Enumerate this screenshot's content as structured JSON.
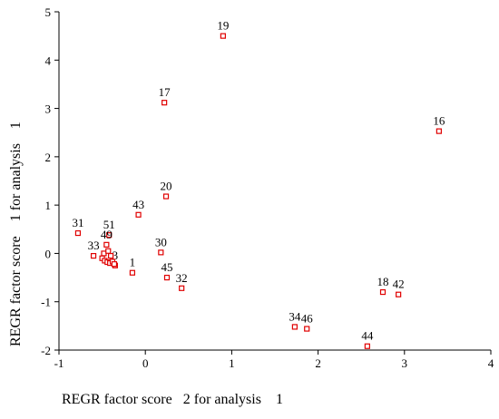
{
  "chart_data": {
    "type": "scatter",
    "xlabel": "REGR factor score   2 for analysis    1",
    "ylabel": "REGR factor score    1 for analysis    1",
    "xlim": [
      -1,
      4
    ],
    "ylim": [
      -2,
      5
    ],
    "xticks": [
      "-1",
      "0",
      "1",
      "2",
      "3",
      "4"
    ],
    "yticks": [
      "-2",
      "-1",
      "0",
      "1",
      "2",
      "3",
      "4",
      "5"
    ],
    "grid": false,
    "marker_color": "#e00000",
    "points": [
      {
        "label": "19",
        "x": 0.9,
        "y": 4.5
      },
      {
        "label": "17",
        "x": 0.22,
        "y": 3.12
      },
      {
        "label": "16",
        "x": 3.4,
        "y": 2.53
      },
      {
        "label": "20",
        "x": 0.24,
        "y": 1.18
      },
      {
        "label": "43",
        "x": -0.08,
        "y": 0.8
      },
      {
        "label": "31",
        "x": -0.78,
        "y": 0.42
      },
      {
        "label": "30",
        "x": 0.18,
        "y": 0.02
      },
      {
        "label": "1",
        "x": -0.15,
        "y": -0.4
      },
      {
        "label": "45",
        "x": 0.25,
        "y": -0.5
      },
      {
        "label": "32",
        "x": 0.42,
        "y": -0.72
      },
      {
        "label": "51",
        "x": -0.42,
        "y": 0.38
      },
      {
        "label": "33",
        "x": -0.6,
        "y": -0.05
      },
      {
        "label": "49",
        "x": -0.45,
        "y": 0.18
      },
      {
        "label": "3",
        "x": -0.35,
        "y": -0.25
      },
      {
        "label": "",
        "x": -0.5,
        "y": -0.1
      },
      {
        "label": "",
        "x": -0.47,
        "y": -0.15
      },
      {
        "label": "",
        "x": -0.44,
        "y": -0.18
      },
      {
        "label": "",
        "x": -0.41,
        "y": -0.2
      },
      {
        "label": "",
        "x": -0.38,
        "y": -0.17
      },
      {
        "label": "",
        "x": -0.36,
        "y": -0.22
      },
      {
        "label": "",
        "x": -0.48,
        "y": 0.0
      },
      {
        "label": "",
        "x": -0.43,
        "y": 0.05
      },
      {
        "label": "",
        "x": -0.4,
        "y": -0.05
      },
      {
        "label": "18",
        "x": 2.75,
        "y": -0.8
      },
      {
        "label": "42",
        "x": 2.93,
        "y": -0.85
      },
      {
        "label": "34",
        "x": 1.73,
        "y": -1.52
      },
      {
        "label": "46",
        "x": 1.87,
        "y": -1.56
      },
      {
        "label": "44",
        "x": 2.57,
        "y": -1.92
      }
    ]
  }
}
